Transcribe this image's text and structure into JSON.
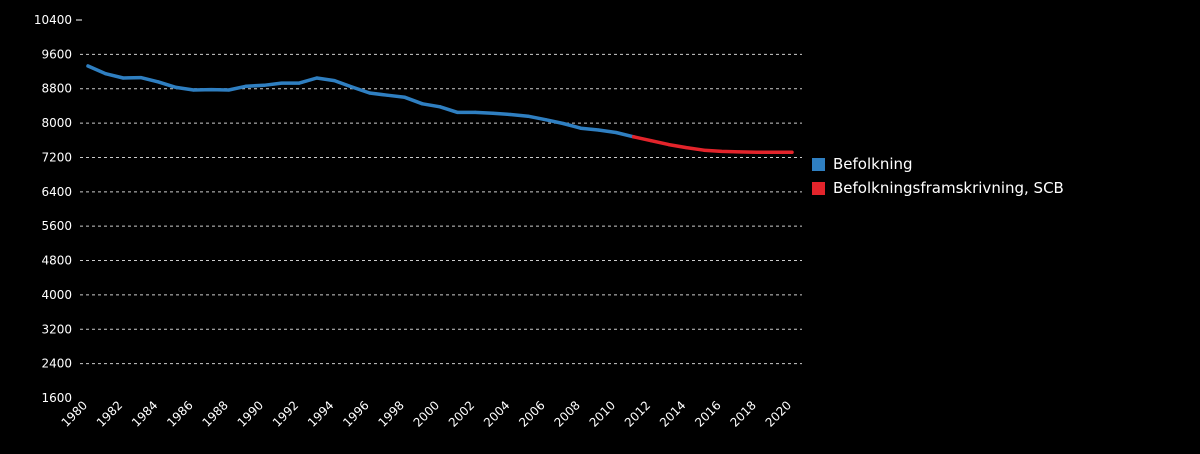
{
  "chart_data": {
    "type": "line",
    "title": "",
    "xlabel": "",
    "ylabel": "",
    "xlim": [
      1980,
      2020
    ],
    "ylim": [
      1600,
      10400
    ],
    "y_ticks": [
      "1600",
      "2400",
      "3200",
      "4000",
      "4800",
      "5600",
      "6400",
      "7200",
      "8000",
      "8800",
      "9600",
      "10400"
    ],
    "x_ticks": [
      "1980",
      "1982",
      "1984",
      "1986",
      "1988",
      "1990",
      "1992",
      "1994",
      "1996",
      "1998",
      "2000",
      "2002",
      "2004",
      "2006",
      "2008",
      "2010",
      "2012",
      "2014",
      "2016",
      "2018",
      "2020"
    ],
    "grid": "horizontal dashed",
    "legend_position": "right",
    "series": [
      {
        "name": "Befolkning",
        "color": "#2f7fc1",
        "x": [
          1980,
          1981,
          1982,
          1983,
          1984,
          1985,
          1986,
          1987,
          1988,
          1989,
          1990,
          1991,
          1992,
          1993,
          1994,
          1995,
          1996,
          1997,
          1998,
          1999,
          2000,
          2001,
          2002,
          2003,
          2004,
          2005,
          2006,
          2007,
          2008,
          2009,
          2010,
          2011
        ],
        "y": [
          9330,
          9150,
          9050,
          9060,
          8960,
          8830,
          8770,
          8780,
          8770,
          8860,
          8880,
          8930,
          8930,
          9050,
          8990,
          8840,
          8700,
          8650,
          8600,
          8450,
          8380,
          8250,
          8250,
          8230,
          8200,
          8160,
          8080,
          7990,
          7880,
          7840,
          7780,
          7680
        ]
      },
      {
        "name": "Befolkningsframskrivning, SCB",
        "color": "#e3242b",
        "x": [
          2011,
          2012,
          2013,
          2014,
          2015,
          2016,
          2017,
          2018,
          2019,
          2020
        ],
        "y": [
          7680,
          7590,
          7500,
          7430,
          7370,
          7340,
          7330,
          7320,
          7320,
          7320
        ]
      }
    ]
  }
}
